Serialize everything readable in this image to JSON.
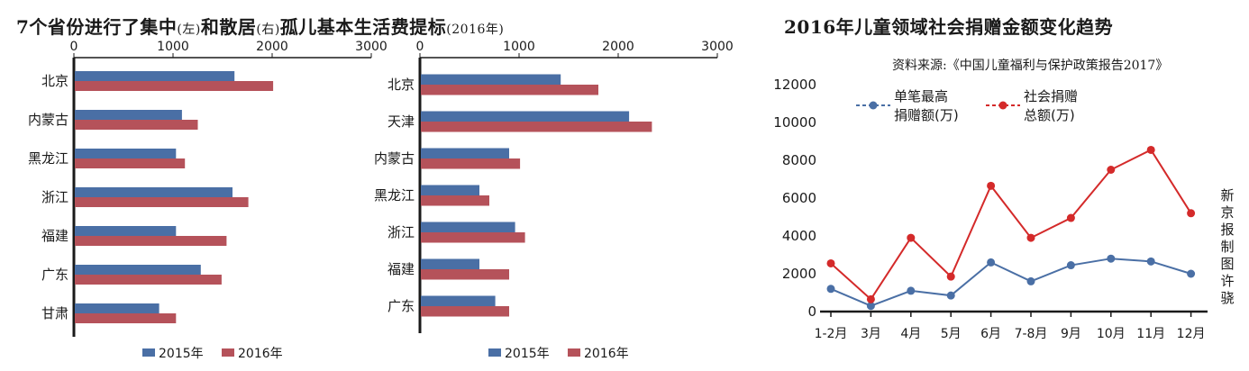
{
  "titles": {
    "left_main": "7个省份进行了集中",
    "left_paren1": "(左)",
    "left_mid": "和散居",
    "left_paren2": "(右)",
    "left_tail": "孤儿基本生活费提标",
    "left_year": "(2016年)",
    "right": "2016年儿童领域社会捐赠金额变化趋势",
    "source": "资料来源:《中国儿童福利与保护政策报告2017》",
    "credit": "新京报制图许骁"
  },
  "colors": {
    "s2015": "#4a6fa5",
    "s2016": "#b5525a",
    "line1": "#4a6fa5",
    "line2": "#d42a2a",
    "axis": "#1a1a1a"
  },
  "chart_data": [
    {
      "type": "bar",
      "orientation": "horizontal",
      "categories": [
        "北京",
        "内蒙古",
        "黑龙江",
        "浙江",
        "福建",
        "广东",
        "甘肃"
      ],
      "series": [
        {
          "name": "2015年",
          "values": [
            1620,
            1090,
            1030,
            1600,
            1030,
            1280,
            860
          ]
        },
        {
          "name": "2016年",
          "values": [
            2010,
            1250,
            1120,
            1760,
            1540,
            1490,
            1030
          ]
        }
      ],
      "xlim": [
        0,
        3000
      ],
      "xticks": [
        "0",
        "1000",
        "2000",
        "3000"
      ],
      "legend": "bottom"
    },
    {
      "type": "bar",
      "orientation": "horizontal",
      "categories": [
        "北京",
        "天津",
        "内蒙古",
        "黑龙江",
        "浙江",
        "福建",
        "广东"
      ],
      "series": [
        {
          "name": "2015年",
          "values": [
            1420,
            2110,
            900,
            600,
            960,
            600,
            760
          ]
        },
        {
          "name": "2016年",
          "values": [
            1800,
            2340,
            1010,
            700,
            1060,
            900,
            900
          ]
        }
      ],
      "xlim": [
        0,
        3000
      ],
      "xticks": [
        "0",
        "1000",
        "2000",
        "3000"
      ],
      "legend": "bottom"
    },
    {
      "type": "line",
      "categories": [
        "1-2月",
        "3月",
        "4月",
        "5月",
        "6月",
        "7-8月",
        "9月",
        "10月",
        "11月",
        "12月"
      ],
      "series": [
        {
          "name": "单笔最高捐赠额(万)",
          "values": [
            1200,
            300,
            1100,
            850,
            2600,
            1600,
            2450,
            2800,
            2650,
            2000
          ]
        },
        {
          "name": "社会捐赠总额(万)",
          "values": [
            2550,
            650,
            3900,
            1850,
            6650,
            3900,
            4950,
            7500,
            8550,
            5200
          ]
        }
      ],
      "ylim": [
        0,
        12000
      ],
      "yticks": [
        "0",
        "2000",
        "4000",
        "6000",
        "8000",
        "10000",
        "12000"
      ],
      "legend": "top-left"
    }
  ]
}
